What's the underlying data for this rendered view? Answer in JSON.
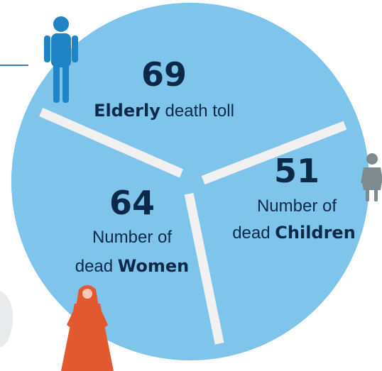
{
  "chart_data": {
    "type": "pie",
    "title": "",
    "slices": [
      {
        "label": "Elderly death toll",
        "value": 69,
        "line1_bold": "Elderly",
        "line1_rest": " death toll",
        "line2_pre": "",
        "line2_bold": ""
      },
      {
        "label": "Number of dead Children",
        "value": 51,
        "line1_bold": "",
        "line1_rest": "Number of",
        "line2_pre": "dead ",
        "line2_bold": "Children"
      },
      {
        "label": "Number of dead Women",
        "value": 64,
        "line1_bold": "",
        "line1_rest": "Number of",
        "line2_pre": "dead ",
        "line2_bold": "Women"
      }
    ]
  },
  "colors": {
    "pie_fill": "#7fc4ea",
    "divider": "#f1f1f1",
    "text": "#0b2a4a",
    "elderly_figure": "#1f84c6",
    "child_figure": "#7e8a8e",
    "woman_figure": "#e2582f"
  },
  "icons": {
    "elderly": "elderly-person-icon",
    "child": "child-icon",
    "woman": "woman-icon"
  }
}
